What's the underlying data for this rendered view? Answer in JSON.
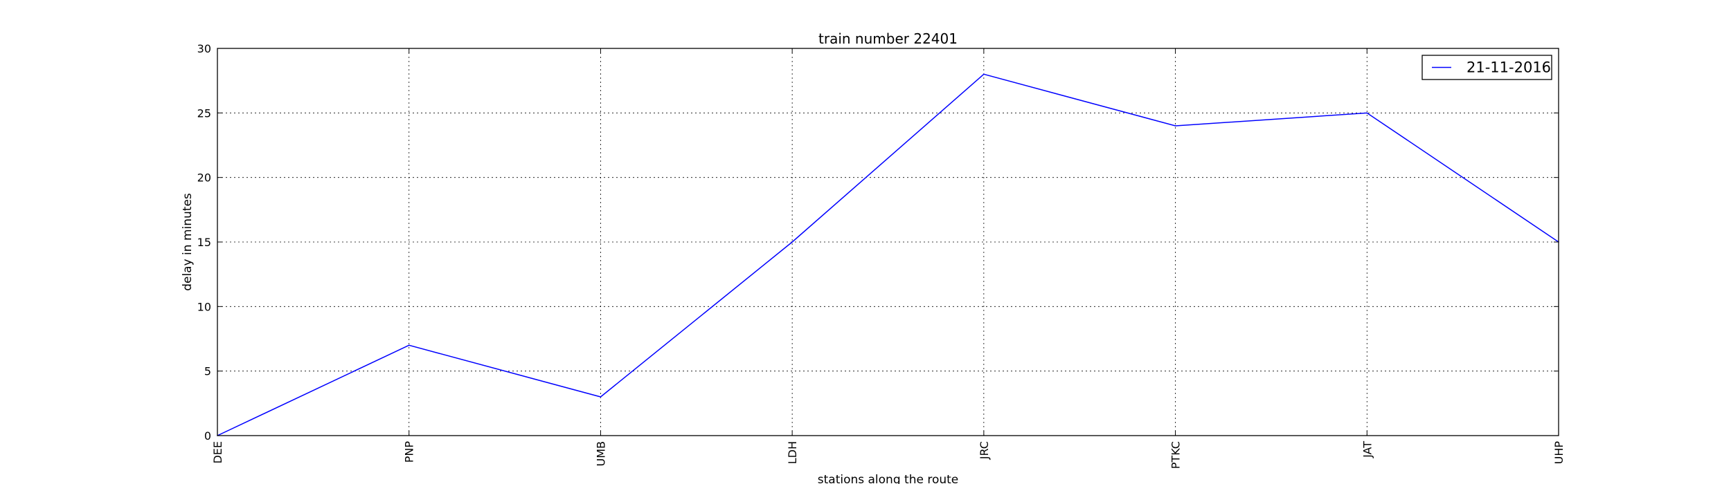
{
  "chart_data": {
    "type": "line",
    "title": "train number 22401",
    "xlabel": "stations along the route",
    "ylabel": "delay in minutes",
    "categories": [
      "DEE",
      "PNP",
      "UMB",
      "LDH",
      "JRC",
      "PTKC",
      "JAT",
      "UHP"
    ],
    "series": [
      {
        "name": "21-11-2016",
        "values": [
          0,
          7,
          3,
          15,
          28,
          24,
          25,
          15
        ],
        "color": "#0000ff"
      }
    ],
    "ylim": [
      0,
      30
    ],
    "yticks": [
      "0",
      "5",
      "10",
      "15",
      "20",
      "25",
      "30"
    ],
    "grid": true,
    "legend": "top-right"
  }
}
